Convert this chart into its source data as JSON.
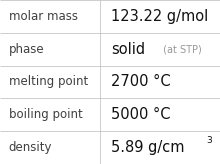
{
  "rows": [
    {
      "label": "molar mass",
      "value": "123.22 g/mol",
      "type": "plain"
    },
    {
      "label": "phase",
      "value": "solid",
      "type": "phase",
      "suffix": " (at STP)"
    },
    {
      "label": "melting point",
      "value": "2700 °C",
      "type": "plain"
    },
    {
      "label": "boiling point",
      "value": "5000 °C",
      "type": "plain"
    },
    {
      "label": "density",
      "value": "5.89 g/cm",
      "type": "super",
      "superscript": "3"
    }
  ],
  "col_split": 0.455,
  "bg_color": "#ffffff",
  "border_color": "#bbbbbb",
  "label_color": "#404040",
  "value_color": "#111111",
  "suffix_color": "#999999",
  "label_fontsize": 8.5,
  "value_fontsize": 10.5,
  "suffix_fontsize": 7.0,
  "super_fontsize": 6.5
}
